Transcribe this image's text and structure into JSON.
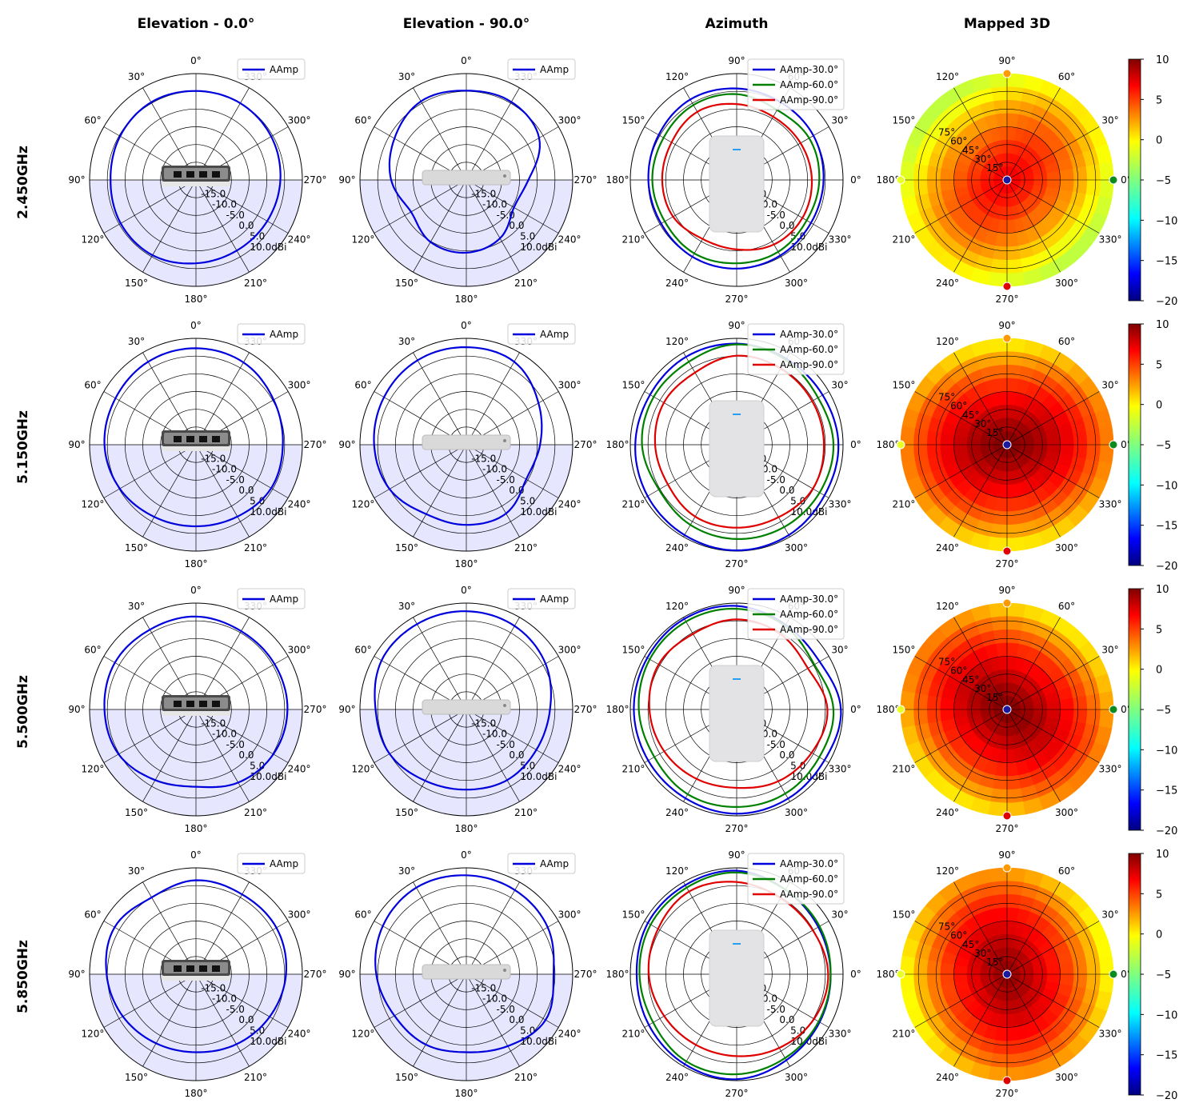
{
  "column_titles": [
    "Elevation - 0.0°",
    "Elevation - 90.0°",
    "Azimuth",
    "Mapped 3D"
  ],
  "row_titles": [
    "2.450GHz",
    "5.150GHz",
    "5.500GHz",
    "5.850GHz"
  ],
  "angle_labels": [
    "0°",
    "30°",
    "60°",
    "90°",
    "120°",
    "150°",
    "180°",
    "210°",
    "240°",
    "270°",
    "300°",
    "330°"
  ],
  "radial_labels": [
    "-15.0",
    "-10.0",
    "-5.0",
    "0.0",
    "5.0",
    "10.0dBi"
  ],
  "mapped_radial_labels": [
    "15°",
    "30°",
    "45°",
    "60°",
    "75°"
  ],
  "colorbar_ticks": [
    "10",
    "5",
    "0",
    "−5",
    "−10",
    "−15",
    "−20"
  ],
  "colors": {
    "elevation_series": "#0000dd",
    "az_30": "#0000dd",
    "az_60": "#008000",
    "az_90": "#e00000",
    "lower_half_shade": "#e6e6ff",
    "colormap": "jet"
  },
  "chart_data": [
    {
      "type": "polar-line",
      "panel": "Elevation - 0.0°",
      "r_range_dbi": [
        -20,
        10
      ],
      "theta_direction": "counter-clockwise from top",
      "series": [
        {
          "name": "AAmp",
          "frequency": "2.450GHz",
          "gain_dbi_every_30deg": [
            5.1,
            5.3,
            4.7,
            4.1,
            4.5,
            4.5,
            3.5,
            3.0,
            3.2,
            3.8,
            4.5,
            5.0
          ]
        },
        {
          "name": "AAmp",
          "frequency": "5.150GHz",
          "gain_dbi_every_30deg": [
            7.2,
            7.0,
            6.2,
            5.8,
            4.8,
            3.5,
            3.0,
            3.4,
            4.5,
            4.5,
            5.3,
            6.8
          ]
        },
        {
          "name": "AAmp",
          "frequency": "5.500GHz",
          "gain_dbi_every_30deg": [
            6.2,
            6.0,
            6.4,
            5.8,
            5.2,
            3.0,
            1.8,
            3.8,
            5.2,
            5.8,
            5.6,
            5.5
          ]
        },
        {
          "name": "AAmp",
          "frequency": "5.850GHz",
          "gain_dbi_every_30deg": [
            6.5,
            5.0,
            6.5,
            5.2,
            3.8,
            2.5,
            2.0,
            2.8,
            4.0,
            5.4,
            6.2,
            6.0
          ]
        }
      ]
    },
    {
      "type": "polar-line",
      "panel": "Elevation - 90.0°",
      "r_range_dbi": [
        -20,
        10
      ],
      "theta_direction": "counter-clockwise from top",
      "series": [
        {
          "name": "AAmp",
          "frequency": "2.450GHz",
          "gain_dbi_every_30deg": [
            5.2,
            5.6,
            3.4,
            1.2,
            -2.0,
            0.2,
            0.5,
            -1.0,
            -4.5,
            -2.5,
            3.7,
            5.4
          ]
        },
        {
          "name": "AAmp",
          "frequency": "5.150GHz",
          "gain_dbi_every_30deg": [
            7.5,
            7.5,
            6.8,
            6.0,
            5.0,
            2.6,
            2.6,
            2.4,
            -0.5,
            0.8,
            3.5,
            7.0
          ]
        },
        {
          "name": "AAmp",
          "frequency": "5.500GHz",
          "gain_dbi_every_30deg": [
            7.7,
            7.8,
            7.6,
            5.6,
            5.0,
            3.2,
            2.6,
            3.0,
            2.8,
            3.6,
            5.8,
            7.2
          ]
        },
        {
          "name": "AAmp",
          "frequency": "5.850GHz",
          "gain_dbi_every_30deg": [
            7.9,
            8.2,
            7.2,
            5.4,
            3.4,
            2.9,
            2.0,
            3.4,
            5.8,
            4.6,
            6.5,
            7.4
          ]
        }
      ]
    },
    {
      "type": "polar-line",
      "panel": "Azimuth",
      "r_range_dbi": [
        -20,
        10
      ],
      "theta_direction": "counter-clockwise from right",
      "series": [
        {
          "name": "AAmp-30.0°",
          "frequency": "2.450GHz",
          "gain_dbi_every_30deg": [
            4.5,
            5.0,
            5.2,
            5.8,
            6.2,
            5.4,
            4.9,
            4.6,
            5.0,
            5.0,
            4.6,
            4.2
          ]
        },
        {
          "name": "AAmp-60.0°",
          "frequency": "2.450GHz",
          "gain_dbi_every_30deg": [
            3.3,
            3.6,
            2.8,
            4.2,
            4.4,
            3.8,
            3.8,
            3.4,
            3.9,
            3.5,
            3.4,
            2.8
          ]
        },
        {
          "name": "AAmp-90.0°",
          "frequency": "2.450GHz",
          "gain_dbi_every_30deg": [
            1.2,
            0.8,
            0.6,
            1.4,
            2.2,
            1.2,
            1.0,
            0.7,
            -0.8,
            -0.4,
            1.0,
            1.4
          ]
        },
        {
          "name": "AAmp-30.0°",
          "frequency": "5.150GHz",
          "gain_dbi_every_30deg": [
            8.7,
            8.0,
            8.0,
            8.5,
            8.6,
            8.2,
            8.6,
            9.0,
            9.4,
            9.8,
            9.4,
            8.6
          ]
        },
        {
          "name": "AAmp-60.0°",
          "frequency": "5.150GHz",
          "gain_dbi_every_30deg": [
            7.3,
            6.5,
            7.6,
            8.3,
            7.0,
            7.0,
            6.7,
            5.3,
            6.1,
            6.6,
            6.8,
            7.0
          ]
        },
        {
          "name": "AAmp-90.0°",
          "frequency": "5.150GHz",
          "gain_dbi_every_30deg": [
            4.6,
            4.6,
            4.8,
            5.1,
            3.5,
            3.7,
            3.0,
            2.4,
            3.4,
            3.4,
            3.6,
            4.8
          ]
        },
        {
          "name": "AAmp-30.0°",
          "frequency": "5.500GHz",
          "gain_dbi_every_30deg": [
            9.4,
            7.0,
            7.6,
            9.2,
            9.5,
            9.1,
            9.0,
            8.8,
            8.9,
            9.4,
            9.0,
            8.6
          ]
        },
        {
          "name": "AAmp-60.0°",
          "frequency": "5.500GHz",
          "gain_dbi_every_30deg": [
            7.3,
            5.3,
            7.2,
            8.4,
            8.6,
            8.3,
            7.6,
            6.8,
            7.6,
            7.5,
            7.4,
            6.9
          ]
        },
        {
          "name": "AAmp-90.0°",
          "frequency": "5.500GHz",
          "gain_dbi_every_30deg": [
            5.6,
            3.2,
            4.6,
            5.4,
            4.6,
            5.4,
            4.6,
            3.6,
            2.6,
            2.1,
            3.4,
            4.4
          ]
        },
        {
          "name": "AAmp-30.0°",
          "frequency": "5.850GHz",
          "gain_dbi_every_30deg": [
            6.5,
            6.6,
            7.5,
            9.2,
            9.0,
            8.9,
            8.2,
            8.6,
            9.3,
            9.6,
            8.0,
            7.0
          ]
        },
        {
          "name": "AAmp-60.0°",
          "frequency": "5.850GHz",
          "gain_dbi_every_30deg": [
            6.5,
            7.0,
            7.5,
            8.7,
            8.2,
            8.0,
            7.4,
            7.2,
            8.4,
            8.2,
            7.3,
            6.7
          ]
        },
        {
          "name": "AAmp-90.0°",
          "frequency": "5.850GHz",
          "gain_dbi_every_30deg": [
            5.8,
            4.8,
            4.8,
            6.0,
            6.9,
            5.6,
            4.8,
            3.6,
            3.0,
            3.1,
            4.0,
            5.2
          ]
        }
      ]
    },
    {
      "type": "heatmap",
      "panel": "Mapped 3D",
      "projection": "polar",
      "colorbar_range_dbi": [
        -20,
        10
      ],
      "markers": [
        "90° orange",
        "0° green",
        "180° yellow",
        "270° red",
        "center blue"
      ],
      "series": [
        {
          "frequency": "2.450GHz",
          "typical_gain_dbi": 3.5
        },
        {
          "frequency": "5.150GHz",
          "typical_gain_dbi": 6.5
        },
        {
          "frequency": "5.500GHz",
          "typical_gain_dbi": 6.5
        },
        {
          "frequency": "5.850GHz",
          "typical_gain_dbi": 6.0
        }
      ]
    }
  ]
}
